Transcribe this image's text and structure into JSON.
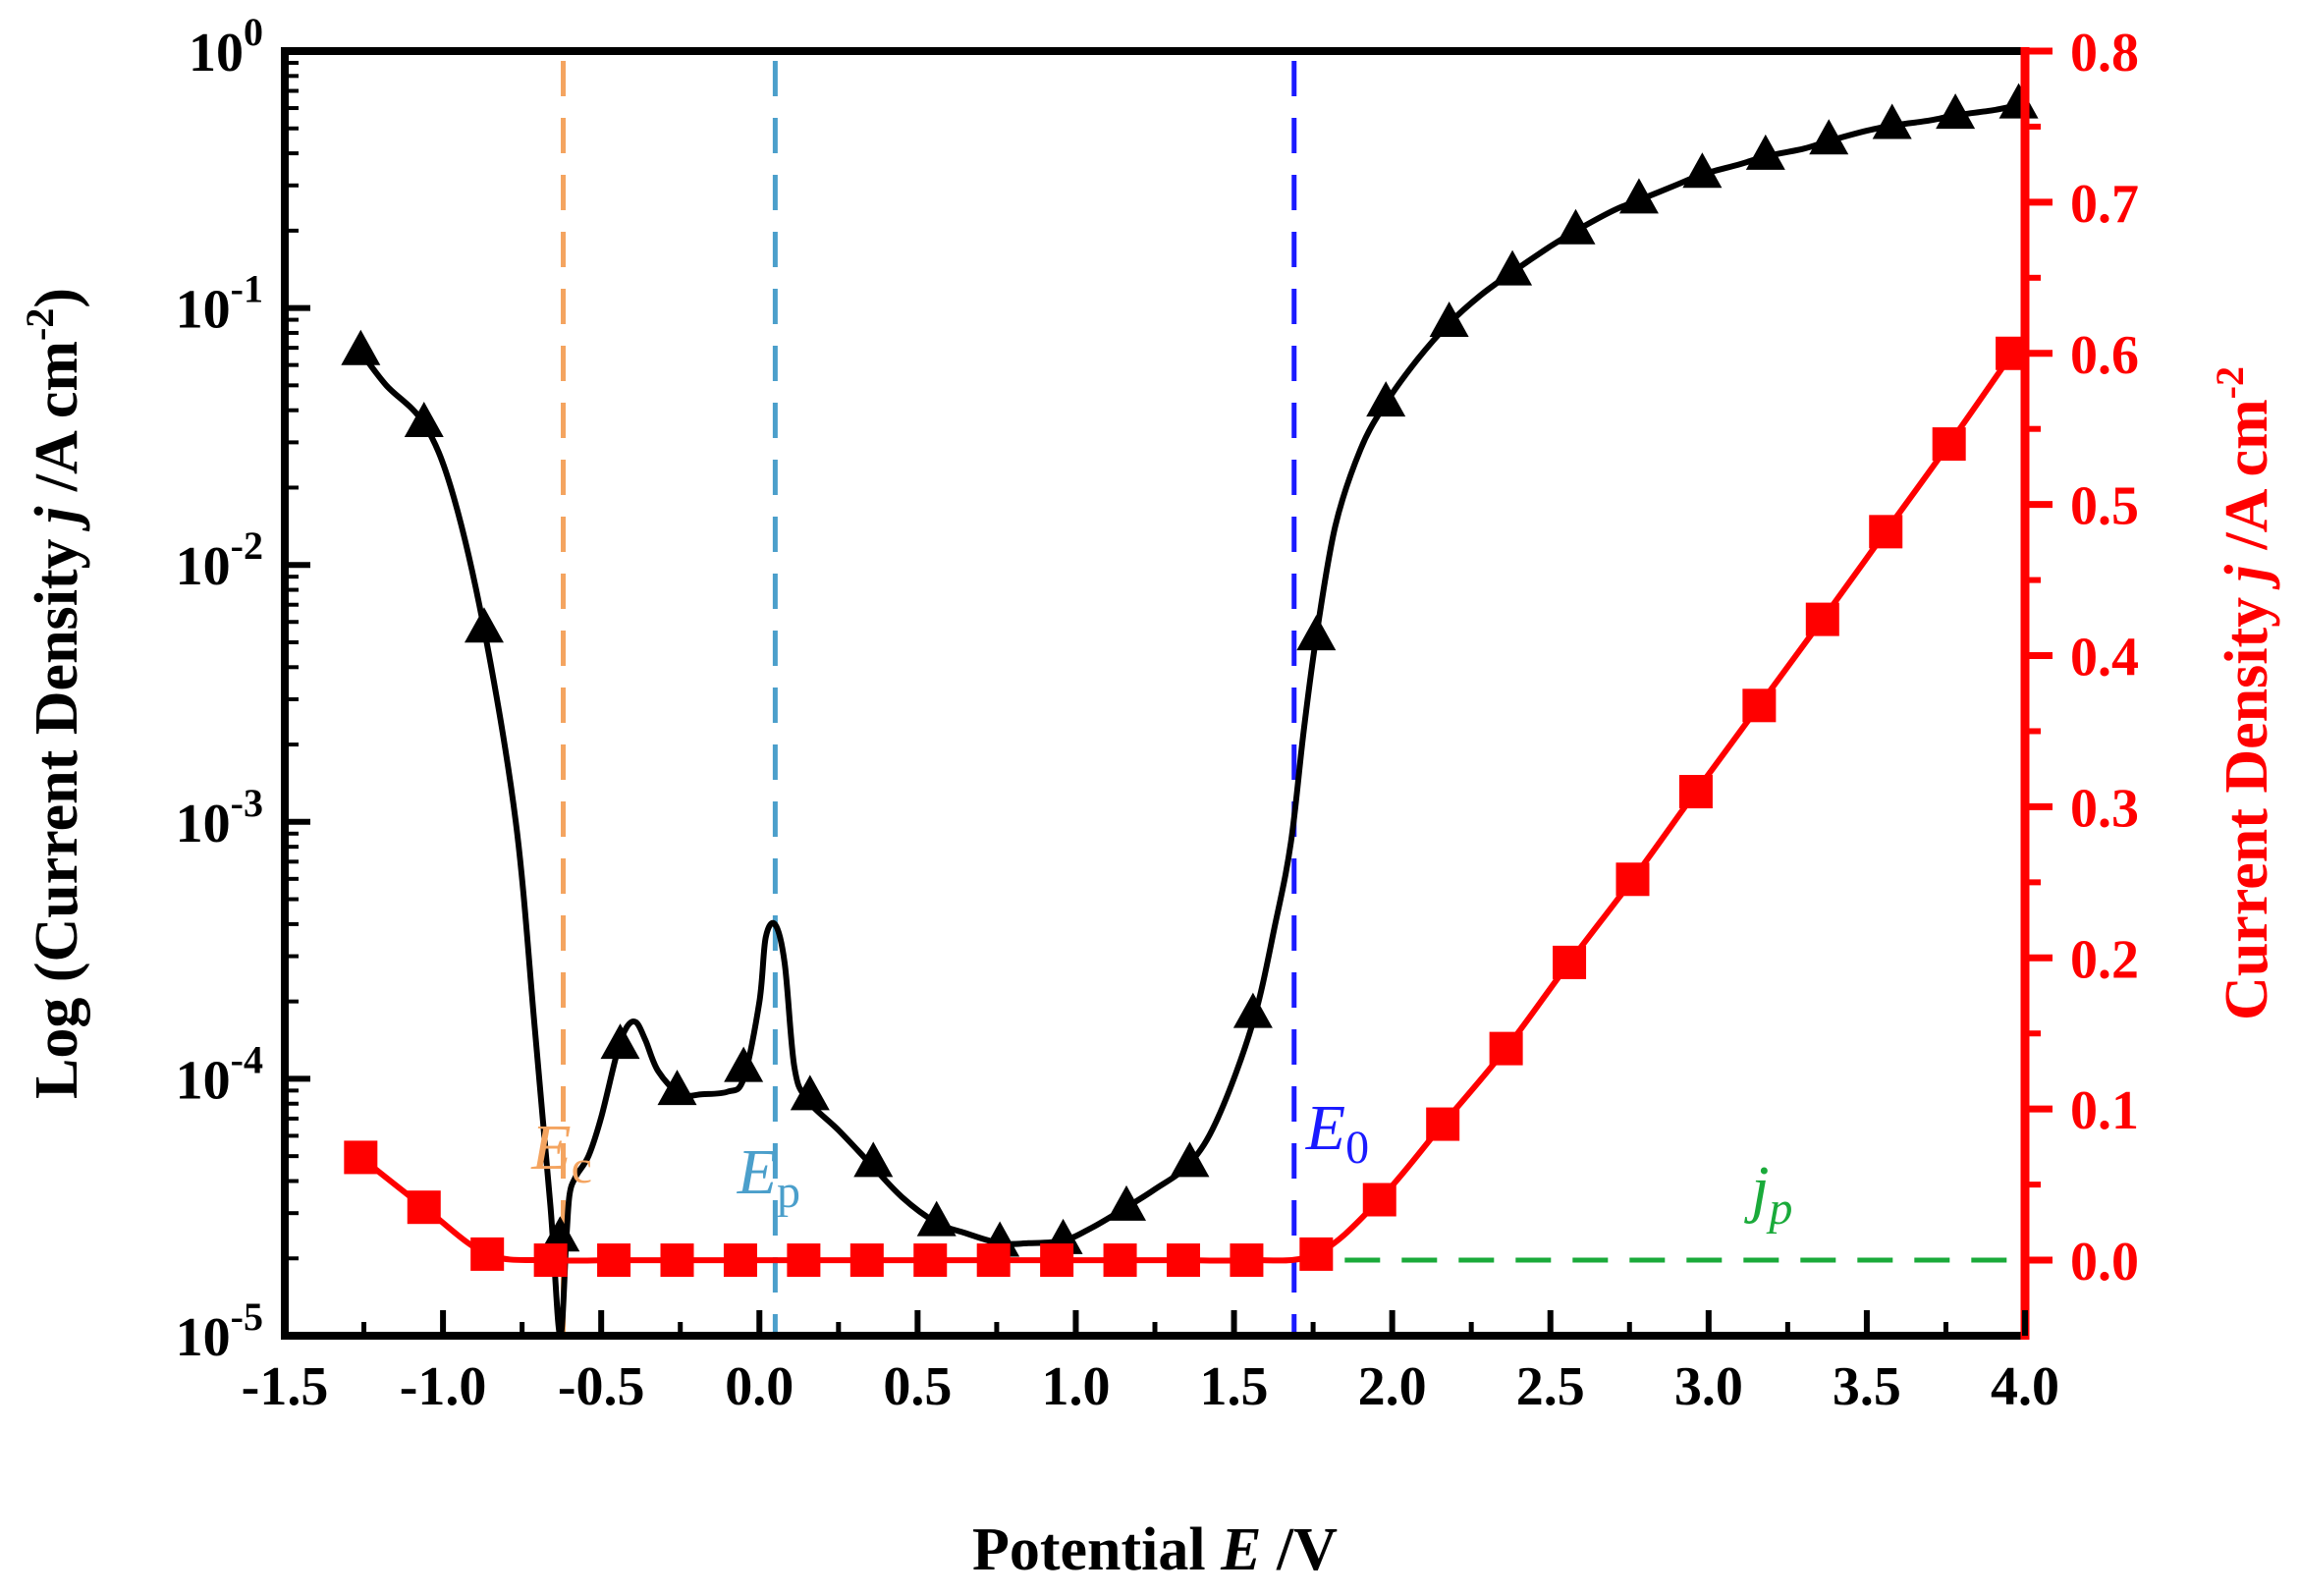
{
  "chart_data": {
    "type": "line",
    "title": "",
    "xlabel": {
      "prefix": "Potential ",
      "var": "E",
      "unit": " /V"
    },
    "ylabel_left": {
      "prefix": "Log (Current Density ",
      "var": "j",
      "unit": " /A cm",
      "sup": "-2",
      "close": ")"
    },
    "ylabel_right": {
      "prefix": "Current Density ",
      "var": "j",
      "unit": " /A cm",
      "sup": "-2"
    },
    "xlim": [
      -1.5,
      4.0
    ],
    "ylim_left_log10": [
      -5,
      0
    ],
    "ylim_right": [
      -0.05,
      0.8
    ],
    "x_ticks": [
      "-1.5",
      "-1.0",
      "-0.5",
      "0.0",
      "0.5",
      "1.0",
      "1.5",
      "2.0",
      "2.5",
      "3.0",
      "3.5",
      "4.0"
    ],
    "x_tick_values": [
      -1.5,
      -1.0,
      -0.5,
      0.0,
      0.5,
      1.0,
      1.5,
      2.0,
      2.5,
      3.0,
      3.5,
      4.0
    ],
    "y_left_ticks": [
      {
        "base": "10",
        "exp": "0",
        "value": 0
      },
      {
        "base": "10",
        "exp": "-1",
        "value": -1
      },
      {
        "base": "10",
        "exp": "-2",
        "value": -2
      },
      {
        "base": "10",
        "exp": "-3",
        "value": -3
      },
      {
        "base": "10",
        "exp": "-4",
        "value": -4
      },
      {
        "base": "10",
        "exp": "-5",
        "value": -5
      }
    ],
    "y_right_ticks": [
      "0.0",
      "0.1",
      "0.2",
      "0.3",
      "0.4",
      "0.5",
      "0.6",
      "0.7",
      "0.8"
    ],
    "y_right_tick_values": [
      0.0,
      0.1,
      0.2,
      0.3,
      0.4,
      0.5,
      0.6,
      0.7,
      0.8
    ],
    "series": [
      {
        "name": "log current density",
        "axis": "left",
        "color": "#000000",
        "marker": "triangle",
        "curve_x": [
          -1.26,
          -1.18,
          -1.06,
          -0.97,
          -0.87,
          -0.77,
          -0.71,
          -0.66,
          -0.63,
          -0.61,
          -0.6,
          -0.58,
          -0.54,
          -0.5,
          -0.45,
          -0.42,
          -0.39,
          -0.36,
          -0.32,
          -0.25,
          -0.18,
          -0.1,
          -0.05,
          0.0,
          0.02,
          0.05,
          0.08,
          0.11,
          0.15,
          0.25,
          0.35,
          0.45,
          0.56,
          0.65,
          0.76,
          0.85,
          0.96,
          1.05,
          1.16,
          1.25,
          1.36,
          1.45,
          1.56,
          1.63,
          1.68,
          1.72,
          1.76,
          1.82,
          1.9,
          1.98,
          2.08,
          2.18,
          2.28,
          2.38,
          2.5,
          2.58,
          2.7,
          2.78,
          2.9,
          2.98,
          3.1,
          3.18,
          3.3,
          3.38,
          3.5,
          3.58,
          3.7,
          3.78,
          3.9,
          3.98
        ],
        "curve_y": [
          -1.17,
          -1.3,
          -1.45,
          -1.72,
          -2.25,
          -3.0,
          -3.8,
          -4.5,
          -5.0,
          -4.62,
          -4.45,
          -4.38,
          -4.3,
          -4.15,
          -3.9,
          -3.8,
          -3.78,
          -3.85,
          -3.97,
          -4.06,
          -4.06,
          -4.05,
          -4.0,
          -3.7,
          -3.45,
          -3.4,
          -3.55,
          -3.95,
          -4.08,
          -4.2,
          -4.33,
          -4.46,
          -4.56,
          -4.6,
          -4.64,
          -4.64,
          -4.63,
          -4.58,
          -4.5,
          -4.43,
          -4.33,
          -4.15,
          -3.78,
          -3.4,
          -3.08,
          -2.65,
          -2.28,
          -1.85,
          -1.55,
          -1.37,
          -1.2,
          -1.06,
          -0.95,
          -0.86,
          -0.76,
          -0.7,
          -0.62,
          -0.58,
          -0.52,
          -0.48,
          -0.44,
          -0.41,
          -0.38,
          -0.35,
          -0.31,
          -0.29,
          -0.27,
          -0.25,
          -0.23,
          -0.21
        ],
        "marker_x": [
          -1.26,
          -1.06,
          -0.87,
          -0.63,
          -0.44,
          -0.26,
          -0.05,
          0.16,
          0.36,
          0.56,
          0.76,
          0.96,
          1.16,
          1.36,
          1.56,
          1.76,
          1.98,
          2.18,
          2.38,
          2.58,
          2.78,
          2.98,
          3.18,
          3.38,
          3.58,
          3.78,
          3.98
        ],
        "marker_y": [
          -1.17,
          -1.45,
          -2.25,
          -4.62,
          -3.87,
          -4.05,
          -3.96,
          -4.07,
          -4.33,
          -4.56,
          -4.64,
          -4.63,
          -4.5,
          -4.33,
          -3.75,
          -2.28,
          -1.37,
          -1.06,
          -0.86,
          -0.7,
          -0.58,
          -0.48,
          -0.41,
          -0.35,
          -0.29,
          -0.25,
          -0.21
        ]
      },
      {
        "name": "current density",
        "axis": "right",
        "color": "#ff0000",
        "marker": "square",
        "x": [
          -1.26,
          -1.06,
          -0.86,
          -0.66,
          -0.46,
          -0.26,
          -0.06,
          0.14,
          0.34,
          0.54,
          0.74,
          0.94,
          1.14,
          1.34,
          1.54,
          1.76,
          1.96,
          2.16,
          2.36,
          2.56,
          2.76,
          2.96,
          3.16,
          3.36,
          3.56,
          3.76,
          3.96
        ],
        "y": [
          0.068,
          0.035,
          0.004,
          0.0,
          0.0,
          0.0,
          0.0,
          0.0,
          0.0,
          0.0,
          0.0,
          0.0,
          0.0,
          0.0,
          0.0,
          0.004,
          0.04,
          0.09,
          0.14,
          0.197,
          0.252,
          0.31,
          0.367,
          0.424,
          0.482,
          0.54,
          0.6
        ]
      }
    ],
    "reference_lines": [
      {
        "name": "Ec",
        "label_main": "E",
        "label_sub": "c",
        "x": -0.62,
        "color": "#f4a460"
      },
      {
        "name": "Ep",
        "label_main": "E",
        "label_sub": "p",
        "x": 0.05,
        "color": "#4b9fcb"
      },
      {
        "name": "E0",
        "label_main": "E",
        "label_sub": "0",
        "x": 1.69,
        "color": "#1a1aff"
      }
    ],
    "jp_line": {
      "label_main": "j",
      "label_sub": "p",
      "value": 0.0,
      "x_from": 1.85,
      "x_to": 4.0,
      "color": "#1aaa3a"
    },
    "axis_colors": {
      "left": "#000000",
      "right": "#ff0000"
    }
  }
}
